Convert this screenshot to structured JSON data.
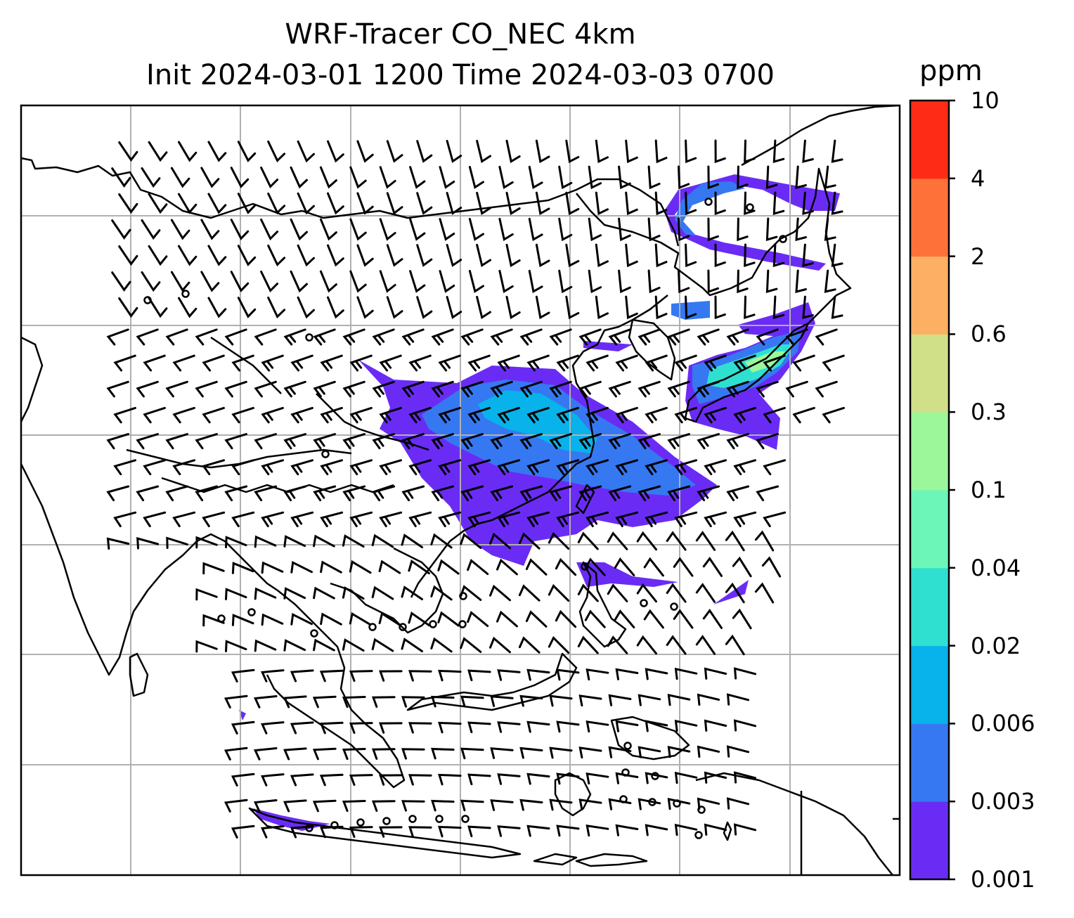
{
  "title": {
    "line1": "WRF-Tracer CO_NEC 4km",
    "line2": "Init 2024-03-01 1200 Time 2024-03-03 0700"
  },
  "colorbar": {
    "unit": "ppm",
    "levels": [
      "0.001",
      "0.003",
      "0.006",
      "0.02",
      "0.04",
      "0.1",
      "0.3",
      "0.6",
      "2",
      "4",
      "10"
    ],
    "colors": [
      "#6a2cf5",
      "#3578f2",
      "#07b3ea",
      "#2fe0d1",
      "#6cf7b8",
      "#9bf79a",
      "#cfe088",
      "#fdb063",
      "#fe7239",
      "#fe2b16"
    ]
  },
  "map": {
    "gridlines": "on",
    "plume_color_low": "#6a2cf5",
    "plume_color_mid": "#3578f2",
    "plume_color_high": "#07b3ea"
  }
}
